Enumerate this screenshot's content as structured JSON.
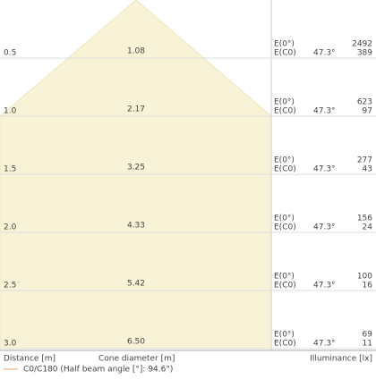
{
  "rows": [
    {
      "distance": "0.5",
      "diameter": "1.08",
      "e0_label": "E(0°)",
      "ec0_label": "E(C0)",
      "angle": "47.3°",
      "e0": "2492",
      "ec0": "389"
    },
    {
      "distance": "1.0",
      "diameter": "2.17",
      "e0_label": "E(0°)",
      "ec0_label": "E(C0)",
      "angle": "47.3°",
      "e0": "623",
      "ec0": "97"
    },
    {
      "distance": "1.5",
      "diameter": "3.25",
      "e0_label": "E(0°)",
      "ec0_label": "E(C0)",
      "angle": "47.3°",
      "e0": "277",
      "ec0": "43"
    },
    {
      "distance": "2.0",
      "diameter": "4.33",
      "e0_label": "E(0°)",
      "ec0_label": "E(C0)",
      "angle": "47.3°",
      "e0": "156",
      "ec0": "24"
    },
    {
      "distance": "2.5",
      "diameter": "5.42",
      "e0_label": "E(0°)",
      "ec0_label": "E(C0)",
      "angle": "47.3°",
      "e0": "100",
      "ec0": "16"
    },
    {
      "distance": "3.0",
      "diameter": "6.50",
      "e0_label": "E(0°)",
      "ec0_label": "E(C0)",
      "angle": "47.3°",
      "e0": "69",
      "ec0": "11"
    }
  ],
  "footer": {
    "distance_label": "Distance [m]",
    "diameter_label": "Cone diameter [m]",
    "illuminance_label": "Illuminance [lx]"
  },
  "legend": {
    "label": "C0/C180 (Half beam angle [°]: 94.6°)"
  }
}
